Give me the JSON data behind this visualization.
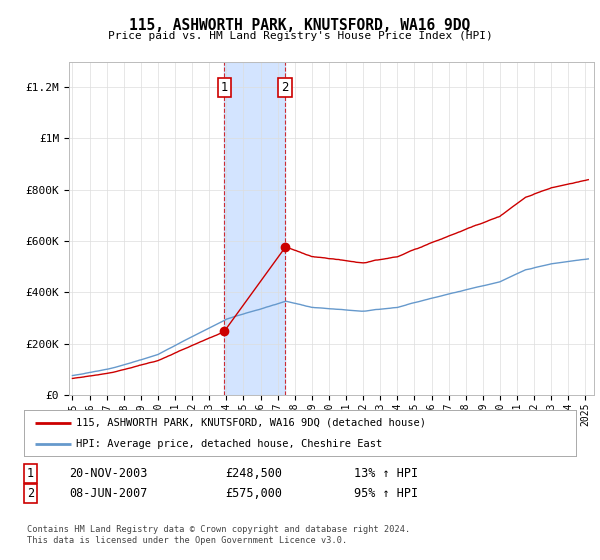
{
  "title": "115, ASHWORTH PARK, KNUTSFORD, WA16 9DQ",
  "subtitle": "Price paid vs. HM Land Registry's House Price Index (HPI)",
  "ylabel_ticks": [
    "£0",
    "£200K",
    "£400K",
    "£600K",
    "£800K",
    "£1M",
    "£1.2M"
  ],
  "ytick_values": [
    0,
    200000,
    400000,
    600000,
    800000,
    1000000,
    1200000
  ],
  "ylim": [
    0,
    1300000
  ],
  "xlim_start": 1994.8,
  "xlim_end": 2025.5,
  "sale1_x": 2003.89,
  "sale1_y": 248500,
  "sale2_x": 2007.44,
  "sale2_y": 575000,
  "sale1_label": "1",
  "sale2_label": "2",
  "shade_x1": 2003.89,
  "shade_x2": 2007.44,
  "legend_line1": "115, ASHWORTH PARK, KNUTSFORD, WA16 9DQ (detached house)",
  "legend_line2": "HPI: Average price, detached house, Cheshire East",
  "annot1_num": "1",
  "annot1_date": "20-NOV-2003",
  "annot1_price": "£248,500",
  "annot1_hpi": "13% ↑ HPI",
  "annot2_num": "2",
  "annot2_date": "08-JUN-2007",
  "annot2_price": "£575,000",
  "annot2_hpi": "95% ↑ HPI",
  "footer": "Contains HM Land Registry data © Crown copyright and database right 2024.\nThis data is licensed under the Open Government Licence v3.0.",
  "line_color_house": "#cc0000",
  "line_color_hpi": "#6699cc",
  "shade_color": "#cce0ff",
  "bg_color": "#ffffff",
  "grid_color": "#dddddd"
}
